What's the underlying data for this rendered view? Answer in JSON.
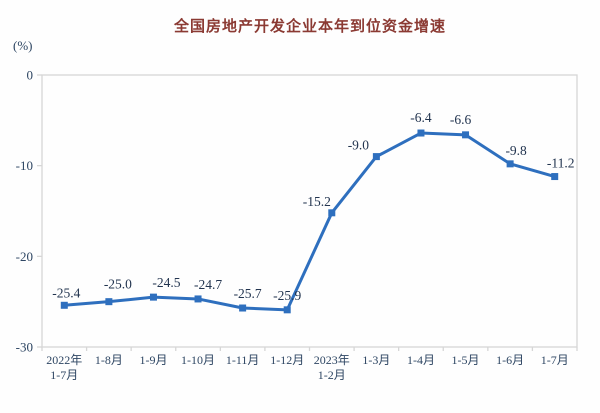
{
  "chart_data": {
    "type": "line",
    "title": "全国房地产开发企业本年到位资金增速",
    "unit_label": "(%)",
    "categories": [
      [
        "2022年",
        "1-7月"
      ],
      [
        "1-8月"
      ],
      [
        "1-9月"
      ],
      [
        "1-10月"
      ],
      [
        "1-11月"
      ],
      [
        "1-12月"
      ],
      [
        "2023年",
        "1-2月"
      ],
      [
        "1-3月"
      ],
      [
        "1-4月"
      ],
      [
        "1-5月"
      ],
      [
        "1-6月"
      ],
      [
        "1-7月"
      ]
    ],
    "values": [
      -25.4,
      -25.0,
      -24.5,
      -24.7,
      -25.7,
      -25.9,
      -15.2,
      -9.0,
      -6.4,
      -6.6,
      -9.8,
      -11.2
    ],
    "data_labels": [
      "-25.4",
      "-25.0",
      "-24.5",
      "-24.7",
      "-25.7",
      "-25.9",
      "-15.2",
      "-9.0",
      "-6.4",
      "-6.6",
      "-9.8",
      "-11.2"
    ],
    "y_ticks": [
      0,
      -10,
      -20,
      -30
    ],
    "ylim": [
      -30,
      0
    ],
    "grid": false,
    "legend": null,
    "colors": {
      "line": "#2E6FBE",
      "marker": "#2E6FBE",
      "title": "#8B3A33",
      "axis_text": "#2E4663",
      "data_label_text": "#22344F",
      "plot_border": "#D6D6D6",
      "background": "#FEFEFE"
    }
  }
}
